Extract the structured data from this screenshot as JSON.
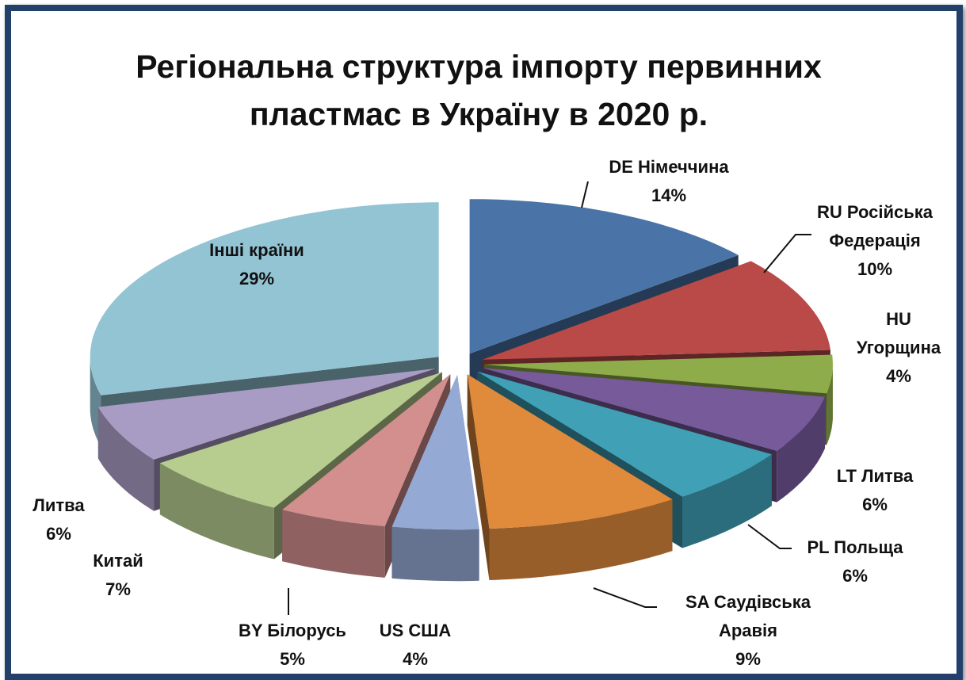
{
  "chart_data": {
    "type": "pie3d",
    "title": "Регіональна структура імпорту первинних пластмас в Україну в 2020 р.",
    "categories": [
      "DE Німеччина",
      "RU Російська Федерація",
      "HU Угорщина",
      "LT Литва",
      "PL Польща",
      "SA Саудівська Аравія",
      "US США",
      "BY Білорусь",
      "Китай",
      "Литва",
      "Інші країни"
    ],
    "values": [
      14,
      10,
      4,
      6,
      6,
      9,
      4,
      5,
      7,
      6,
      29
    ],
    "value_labels": [
      "14%",
      "10%",
      "4%",
      "6%",
      "6%",
      "9%",
      "4%",
      "5%",
      "7%",
      "6%",
      "29%"
    ],
    "colors": [
      "#4a74a8",
      "#b94a48",
      "#8fac4a",
      "#775a9a",
      "#3fa0b6",
      "#e08a3c",
      "#94a9d4",
      "#d38f8e",
      "#b7cd8f",
      "#a99cc4",
      "#93c4d4"
    ]
  }
}
